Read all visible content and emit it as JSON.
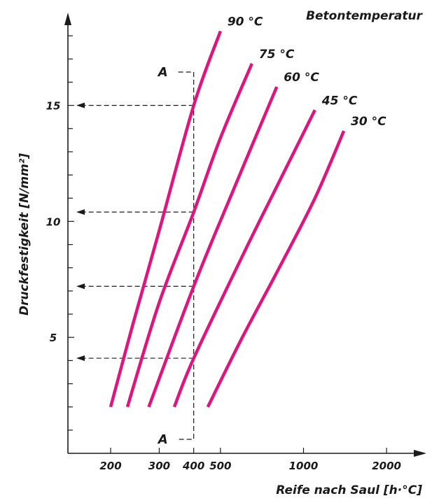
{
  "chart_data": {
    "type": "line",
    "title": "Betontemperatur",
    "xlabel": "Reife nach Saul [h·°C]",
    "ylabel": "Druckfestigkeit [N/mm²]",
    "x_scale": "log",
    "x_ticks": [
      200,
      300,
      400,
      500,
      1000,
      2000
    ],
    "y_ticks": [
      5,
      10,
      15
    ],
    "xlim": [
      140,
      2600
    ],
    "ylim": [
      0,
      19
    ],
    "grid": false,
    "series": [
      {
        "name": "90 °C",
        "color": "#e0147f",
        "x": [
          200,
          240,
          300,
          400,
          500
        ],
        "y": [
          2.0,
          5.5,
          9.6,
          15.0,
          18.2
        ]
      },
      {
        "name": "75 °C",
        "color": "#e0147f",
        "x": [
          230,
          300,
          400,
          500,
          650
        ],
        "y": [
          2.0,
          6.5,
          10.4,
          13.6,
          16.8
        ]
      },
      {
        "name": "60 °C",
        "color": "#e0147f",
        "x": [
          275,
          400,
          550,
          800
        ],
        "y": [
          2.0,
          7.2,
          11.2,
          15.8
        ]
      },
      {
        "name": "45 °C",
        "color": "#e0147f",
        "x": [
          340,
          400,
          600,
          800,
          1100
        ],
        "y": [
          2.0,
          4.1,
          8.5,
          11.5,
          14.8
        ]
      },
      {
        "name": "30 °C",
        "color": "#e0147f",
        "x": [
          450,
          600,
          800,
          1100,
          1400
        ],
        "y": [
          2.0,
          5.0,
          7.8,
          11.0,
          13.9
        ]
      }
    ],
    "reference_line": {
      "label_top": "A",
      "label_bottom": "A",
      "x": 400,
      "readings_y": [
        15.0,
        10.4,
        7.2,
        4.1
      ]
    }
  }
}
